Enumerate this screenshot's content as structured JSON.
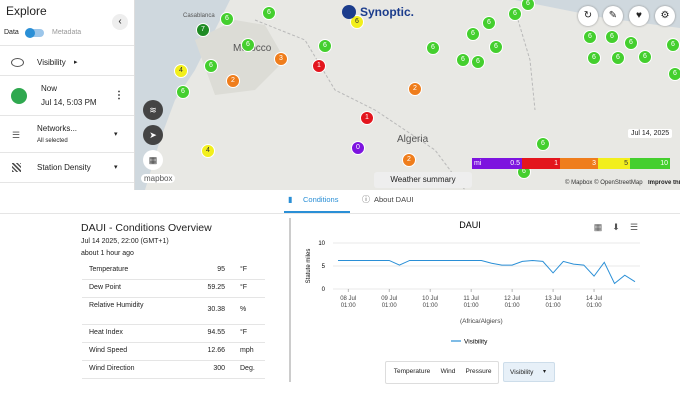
{
  "sidebar": {
    "title": "Explore",
    "toggle_left": "Data",
    "toggle_right": "Metadata",
    "items": [
      {
        "label": "Visibility"
      },
      {
        "label": "Now",
        "sublabel": "Jul 14, 5:03 PM"
      },
      {
        "label": "Networks...",
        "sublabel": "All selected"
      },
      {
        "label": "Station Density"
      }
    ]
  },
  "map": {
    "brand": "Synoptic.",
    "logo": "mapbox",
    "places": [
      "Casablanca",
      "Morocco",
      "Algeria"
    ],
    "markers": [
      {
        "label": "6",
        "color": "#44cf2e"
      },
      {
        "label": "6",
        "color": "#44cf2e"
      },
      {
        "label": "7",
        "color": "#1f8b24"
      },
      {
        "label": "6",
        "color": "#44cf2e"
      },
      {
        "label": "6",
        "color": "#44cf2e"
      },
      {
        "label": "6",
        "color": "#44cf2e"
      },
      {
        "label": "6",
        "color": "#f2ef1c"
      },
      {
        "label": "3",
        "color": "#ef7d1c"
      },
      {
        "label": "1",
        "color": "#e3151d"
      },
      {
        "label": "4",
        "color": "#f2ef1c"
      },
      {
        "label": "2",
        "color": "#ef7d1c"
      },
      {
        "label": "6",
        "color": "#44cf2e"
      },
      {
        "label": "2",
        "color": "#ef7d1c"
      },
      {
        "label": "1",
        "color": "#e3151d"
      },
      {
        "label": "0",
        "color": "#7d14df"
      },
      {
        "label": "2",
        "color": "#ef7d1c"
      },
      {
        "label": "4",
        "color": "#f2ef1c"
      },
      {
        "label": "6",
        "color": "#44cf2e"
      },
      {
        "label": "6",
        "color": "#44cf2e"
      },
      {
        "label": "6",
        "color": "#44cf2e"
      },
      {
        "label": "6",
        "color": "#44cf2e"
      },
      {
        "label": "6",
        "color": "#44cf2e"
      },
      {
        "label": "6",
        "color": "#44cf2e"
      },
      {
        "label": "6",
        "color": "#44cf2e"
      },
      {
        "label": "6",
        "color": "#44cf2e"
      },
      {
        "label": "6",
        "color": "#44cf2e"
      },
      {
        "label": "6",
        "color": "#44cf2e"
      },
      {
        "label": "6",
        "color": "#44cf2e"
      },
      {
        "label": "6",
        "color": "#44cf2e"
      },
      {
        "label": "6",
        "color": "#44cf2e"
      },
      {
        "label": "6",
        "color": "#44cf2e"
      },
      {
        "label": "6",
        "color": "#44cf2e"
      },
      {
        "label": "6",
        "color": "#44cf2e"
      },
      {
        "label": "6",
        "color": "#44cf2e"
      },
      {
        "label": "6",
        "color": "#44cf2e"
      }
    ],
    "legend": [
      {
        "label": "mi",
        "color": "#7d14df"
      },
      {
        "label": "0.5",
        "color": "#7d14df"
      },
      {
        "label": "1",
        "color": "#e3151d"
      },
      {
        "label": "3",
        "color": "#ef7d1c"
      },
      {
        "label": "5",
        "color": "#f2ef1c"
      },
      {
        "label": "10",
        "color": "#44cf2e"
      }
    ],
    "tooltip": "Jul 14, 2025",
    "summary_button": "Weather summary",
    "attribution": "© Mapbox © OpenStreetMap",
    "improve": "Improve this map"
  },
  "tabs": [
    "Conditions",
    "About DAUI"
  ],
  "overview": {
    "title": "DAUI - Conditions Overview",
    "timestamp": "Jul 14 2025, 22:00 (GMT+1)",
    "age": "about 1 hour ago",
    "rows": [
      [
        "Temperature",
        95,
        "°F"
      ],
      [
        "Dew Point",
        59.25,
        "°F"
      ],
      [
        "Relative Humidity",
        30.38,
        "%"
      ],
      [
        "Heat Index",
        94.55,
        "°F"
      ],
      [
        "Wind Speed",
        12.66,
        "mph"
      ],
      [
        "Wind Direction",
        300,
        "Deg."
      ]
    ]
  },
  "chart_data": {
    "type": "line",
    "title": "DAUI",
    "y_label": "Statute miles",
    "x_label": "(Africa/Algiers)",
    "x": [
      "07 Jul 19:00",
      "08 Jul 01:00",
      "08 Jul 07:00",
      "08 Jul 13:00",
      "08 Jul 19:00",
      "09 Jul 01:00",
      "09 Jul 07:00",
      "09 Jul 13:00",
      "09 Jul 19:00",
      "10 Jul 01:00",
      "10 Jul 07:00",
      "10 Jul 13:00",
      "10 Jul 19:00",
      "11 Jul 01:00",
      "11 Jul 07:00",
      "11 Jul 13:00",
      "11 Jul 19:00",
      "12 Jul 01:00",
      "12 Jul 07:00",
      "12 Jul 13:00",
      "12 Jul 19:00",
      "13 Jul 01:00",
      "13 Jul 07:00",
      "13 Jul 13:00",
      "13 Jul 19:00",
      "14 Jul 01:00",
      "14 Jul 07:00",
      "14 Jul 13:00",
      "14 Jul 19:00",
      "15 Jul 01:00"
    ],
    "series": [
      {
        "name": "Visibility",
        "color": "#2a8fd6",
        "values": [
          6.2,
          6.2,
          6.2,
          6.2,
          6.2,
          6.2,
          5.2,
          6.2,
          6.2,
          6.2,
          6.2,
          6.2,
          6.2,
          6.2,
          6.2,
          5.6,
          5.2,
          5.2,
          6.0,
          6.2,
          6.0,
          3.5,
          6.0,
          5.4,
          5.2,
          2.8,
          5.8,
          1.2,
          3.0,
          1.6
        ]
      }
    ],
    "ylim": [
      0,
      10
    ],
    "yticks": [
      0,
      5,
      10
    ],
    "xticks": [
      "08 Jul 01:00",
      "09 Jul 01:00",
      "10 Jul 01:00",
      "11 Jul 01:00",
      "12 Jul 01:00",
      "13 Jul 01:00",
      "14 Jul 01:00"
    ],
    "grid": true
  },
  "chart_controls": [
    "Temperature",
    "Wind",
    "Pressure",
    "Visibility"
  ]
}
